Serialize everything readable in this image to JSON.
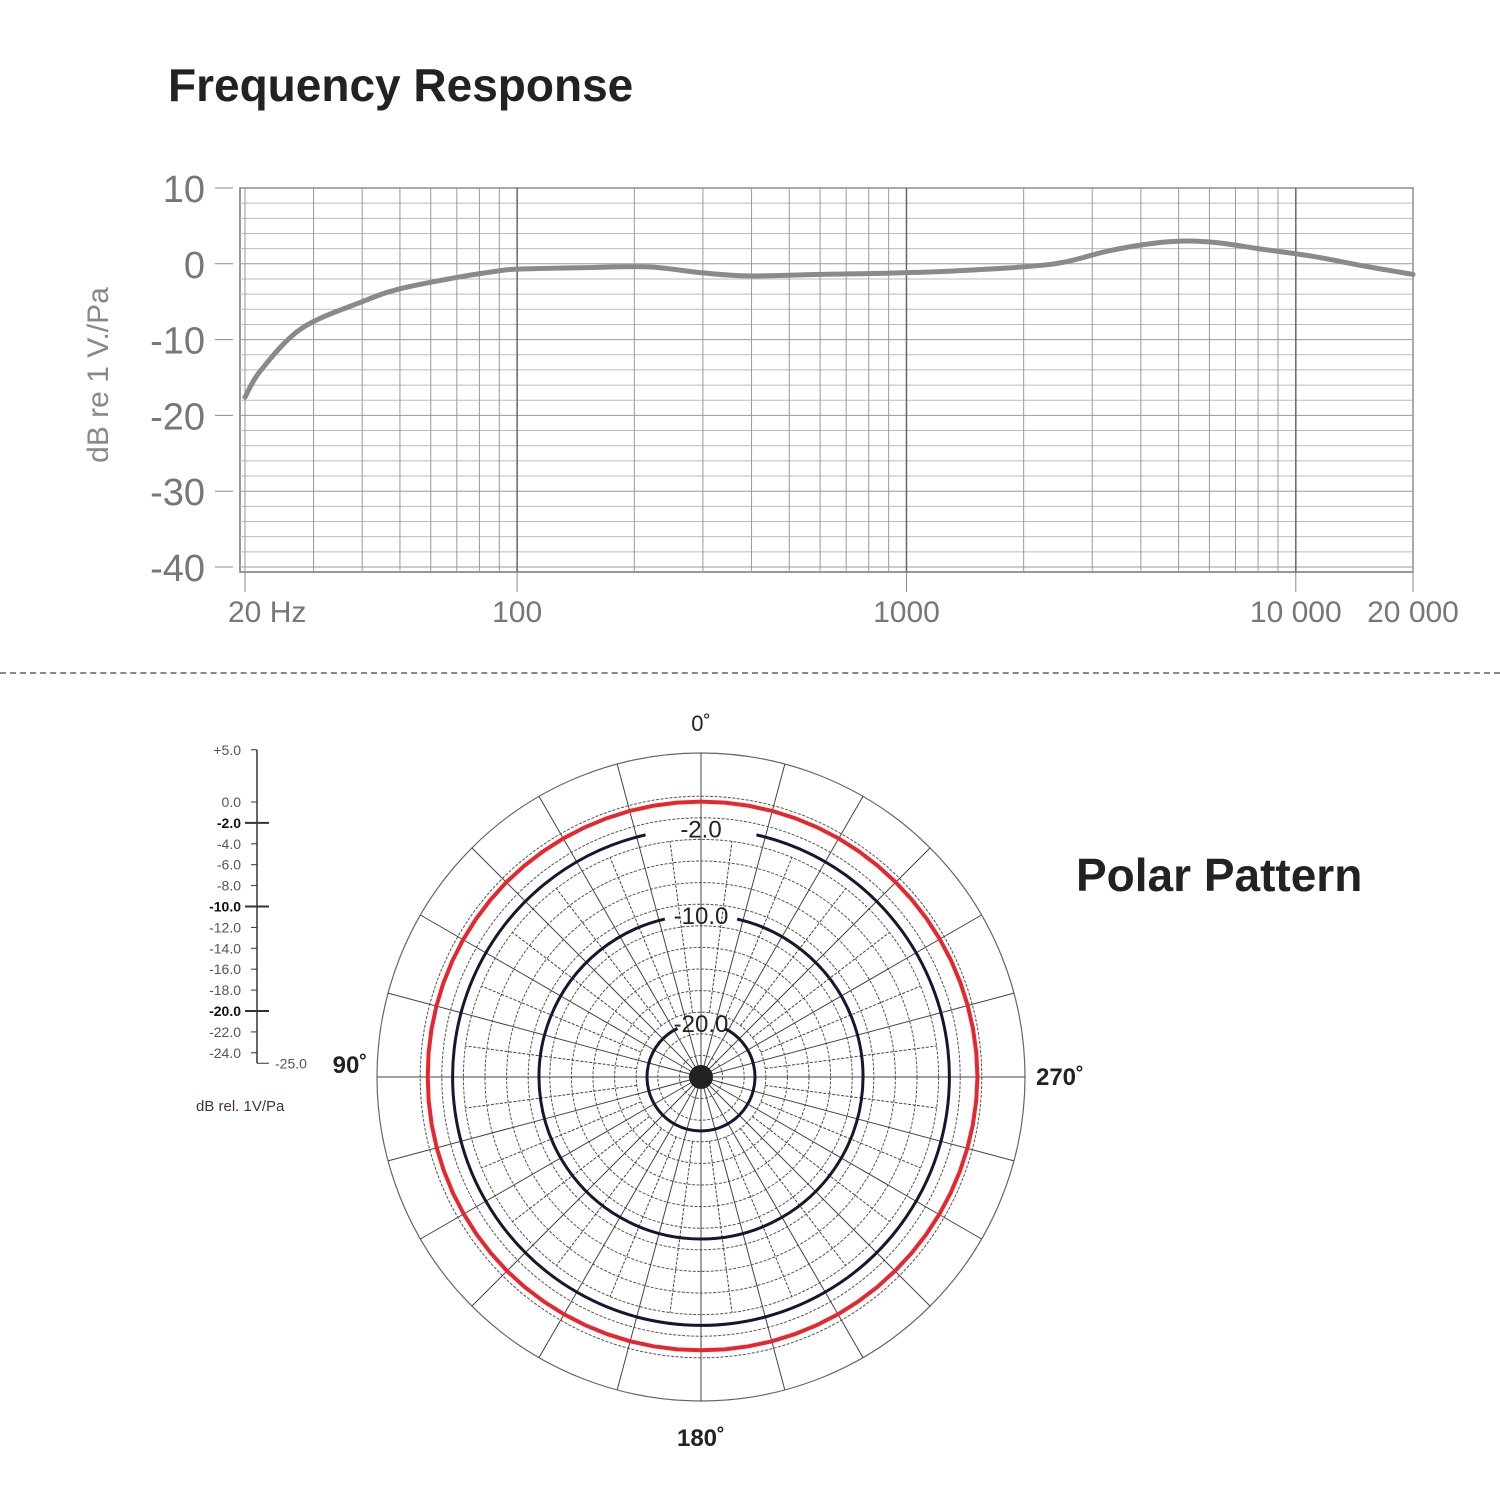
{
  "chart_data": [
    {
      "type": "line",
      "title": "Frequency Response",
      "xlabel": "",
      "ylabel": "dB re 1 V./Pa",
      "x_scale": "log",
      "xlim": [
        20,
        20000
      ],
      "ylim": [
        -40,
        10
      ],
      "grid": true,
      "x_ticks": [
        {
          "value": 20,
          "label": "20 Hz"
        },
        {
          "value": 100,
          "label": "100"
        },
        {
          "value": 1000,
          "label": "1000"
        },
        {
          "value": 10000,
          "label": "10 000"
        },
        {
          "value": 20000,
          "label": "20 000"
        }
      ],
      "y_ticks": [
        {
          "value": 10,
          "label": "10"
        },
        {
          "value": 0,
          "label": "0"
        },
        {
          "value": -10,
          "label": "-10"
        },
        {
          "value": -20,
          "label": "-20"
        },
        {
          "value": -30,
          "label": "-30"
        },
        {
          "value": -40,
          "label": "-40"
        }
      ],
      "series": [
        {
          "color": "#8a8a8a",
          "x": [
            20,
            22,
            28,
            40,
            50,
            70,
            88,
            100,
            150,
            217,
            300,
            396,
            600,
            960,
            1500,
            2400,
            3300,
            4300,
            5300,
            6500,
            8000,
            11000,
            15000,
            20000
          ],
          "y": [
            -17.6,
            -14,
            -8.5,
            -5,
            -3.3,
            -1.8,
            -1,
            -0.7,
            -0.5,
            -0.4,
            -1.2,
            -1.6,
            -1.4,
            -1.2,
            -0.8,
            0,
            1.7,
            2.7,
            3,
            2.7,
            2,
            1,
            -0.3,
            -1.4
          ]
        }
      ]
    },
    {
      "type": "polar",
      "title": "Polar Pattern",
      "r_unit_label": "dB rel. 1V/Pa",
      "rlim": [
        -25,
        5
      ],
      "angle_labels": [
        {
          "angle": 0,
          "label": "0˚"
        },
        {
          "angle": 90,
          "label": "90˚"
        },
        {
          "angle": 180,
          "label": "180˚"
        },
        {
          "angle": 270,
          "label": "270˚"
        }
      ],
      "scale_ticks": [
        {
          "value": 5,
          "label": "+5.0",
          "bold": false
        },
        {
          "value": 0,
          "label": "0.0",
          "bold": false
        },
        {
          "value": -2,
          "label": "-2.0",
          "bold": true
        },
        {
          "value": -4,
          "label": "-4.0",
          "bold": false
        },
        {
          "value": -6,
          "label": "-6.0",
          "bold": false
        },
        {
          "value": -8,
          "label": "-8.0",
          "bold": false
        },
        {
          "value": -10,
          "label": "-10.0",
          "bold": true
        },
        {
          "value": -12,
          "label": "-12.0",
          "bold": false
        },
        {
          "value": -14,
          "label": "-14.0",
          "bold": false
        },
        {
          "value": -16,
          "label": "-16.0",
          "bold": false
        },
        {
          "value": -18,
          "label": "-18.0",
          "bold": false
        },
        {
          "value": -20,
          "label": "-20.0",
          "bold": true
        },
        {
          "value": -22,
          "label": "-22.0",
          "bold": false
        },
        {
          "value": -24,
          "label": "-24.0",
          "bold": false
        },
        {
          "value": -25,
          "label": "-25.0",
          "bold": false
        }
      ],
      "ring_labels": [
        {
          "value": -2,
          "label": "-2.0"
        },
        {
          "value": -10,
          "label": "-10.0"
        },
        {
          "value": -20,
          "label": "-20.0"
        }
      ],
      "series": [
        {
          "color": "#e8262e",
          "angles": [
            0,
            45,
            90,
            135,
            180,
            225,
            270,
            315
          ],
          "values": [
            0.5,
            0.5,
            0.3,
            0.4,
            0.3,
            0.4,
            0.6,
            0.5
          ]
        }
      ]
    }
  ]
}
